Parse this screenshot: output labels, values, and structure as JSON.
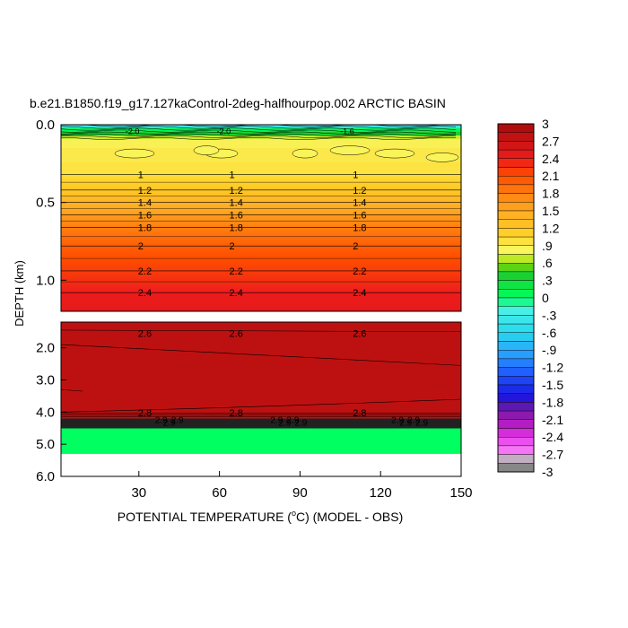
{
  "chart_data": {
    "type": "heatmap",
    "title": "b.e21.B1850.f19_g17.127kaControl-2deg-halfhourpop.002 ARCTIC BASIN",
    "xlabel": "POTENTIAL TEMPERATURE (",
    "xlabel_sup": "o",
    "xlabel_tail": "C) (MODEL - OBS)",
    "ylabel": "DEPTH (km)",
    "x_ticks": [
      "30",
      "60",
      "90",
      "120",
      "150"
    ],
    "x_range": [
      1,
      150
    ],
    "upper_panel": {
      "y_range_km": [
        0,
        1.2
      ],
      "y_ticks": [
        "0.0",
        "0.5",
        "1.0"
      ],
      "contour_levels": [
        1,
        1.2,
        1.4,
        1.6,
        1.8,
        2,
        2.2,
        2.4
      ],
      "contour_depths_km": [
        0.32,
        0.42,
        0.5,
        0.58,
        0.66,
        0.78,
        0.94,
        1.08
      ],
      "contour_label_x": [
        33,
        67,
        113
      ],
      "surface_labels": [
        "-2.0",
        "-2.0",
        "-1.6"
      ]
    },
    "lower_panel": {
      "y_range_km": [
        1.2,
        6.0
      ],
      "y_ticks": [
        "2.0",
        "3.0",
        "4.0",
        "5.0",
        "6.0"
      ],
      "contour_levels": [
        2.6,
        2.8
      ],
      "contour_label_text": [
        "2.6",
        "2.8",
        "2.9"
      ],
      "seafloor_depth_km": 4.2,
      "value_below_floor": 0
    },
    "colorbar": {
      "min": -3,
      "max": 3,
      "step": 0.15,
      "labels": [
        "3",
        "2.7",
        "2.4",
        "2.1",
        "1.8",
        "1.5",
        "1.2",
        ".9",
        ".6",
        ".3",
        "0",
        "-.3",
        "-.6",
        "-.9",
        "-1.2",
        "-1.5",
        "-1.8",
        "-2.1",
        "-2.4",
        "-2.7",
        "-3"
      ],
      "stops": [
        {
          "v": -3.0,
          "c": "#6a6a6a"
        },
        {
          "v": -2.8,
          "c": "#b8b8b8"
        },
        {
          "v": -2.6,
          "c": "#ff6cff"
        },
        {
          "v": -2.25,
          "c": "#c81cd0"
        },
        {
          "v": -1.95,
          "c": "#7a1aa0"
        },
        {
          "v": -1.7,
          "c": "#1a14e0"
        },
        {
          "v": -1.3,
          "c": "#1f5bff"
        },
        {
          "v": -0.95,
          "c": "#29a3ff"
        },
        {
          "v": -0.6,
          "c": "#28d8ee"
        },
        {
          "v": -0.2,
          "c": "#4af0e6"
        },
        {
          "v": 0.0,
          "c": "#00ff60"
        },
        {
          "v": 0.45,
          "c": "#20c828"
        },
        {
          "v": 0.6,
          "c": "#98e000"
        },
        {
          "v": 0.8,
          "c": "#f8f860"
        },
        {
          "v": 1.1,
          "c": "#ffd028"
        },
        {
          "v": 1.5,
          "c": "#ffaa22"
        },
        {
          "v": 1.8,
          "c": "#ff7f10"
        },
        {
          "v": 2.1,
          "c": "#ff4e00"
        },
        {
          "v": 2.4,
          "c": "#ee1c1c"
        },
        {
          "v": 2.7,
          "c": "#c81414"
        },
        {
          "v": 3.0,
          "c": "#a80c0c"
        }
      ]
    }
  }
}
